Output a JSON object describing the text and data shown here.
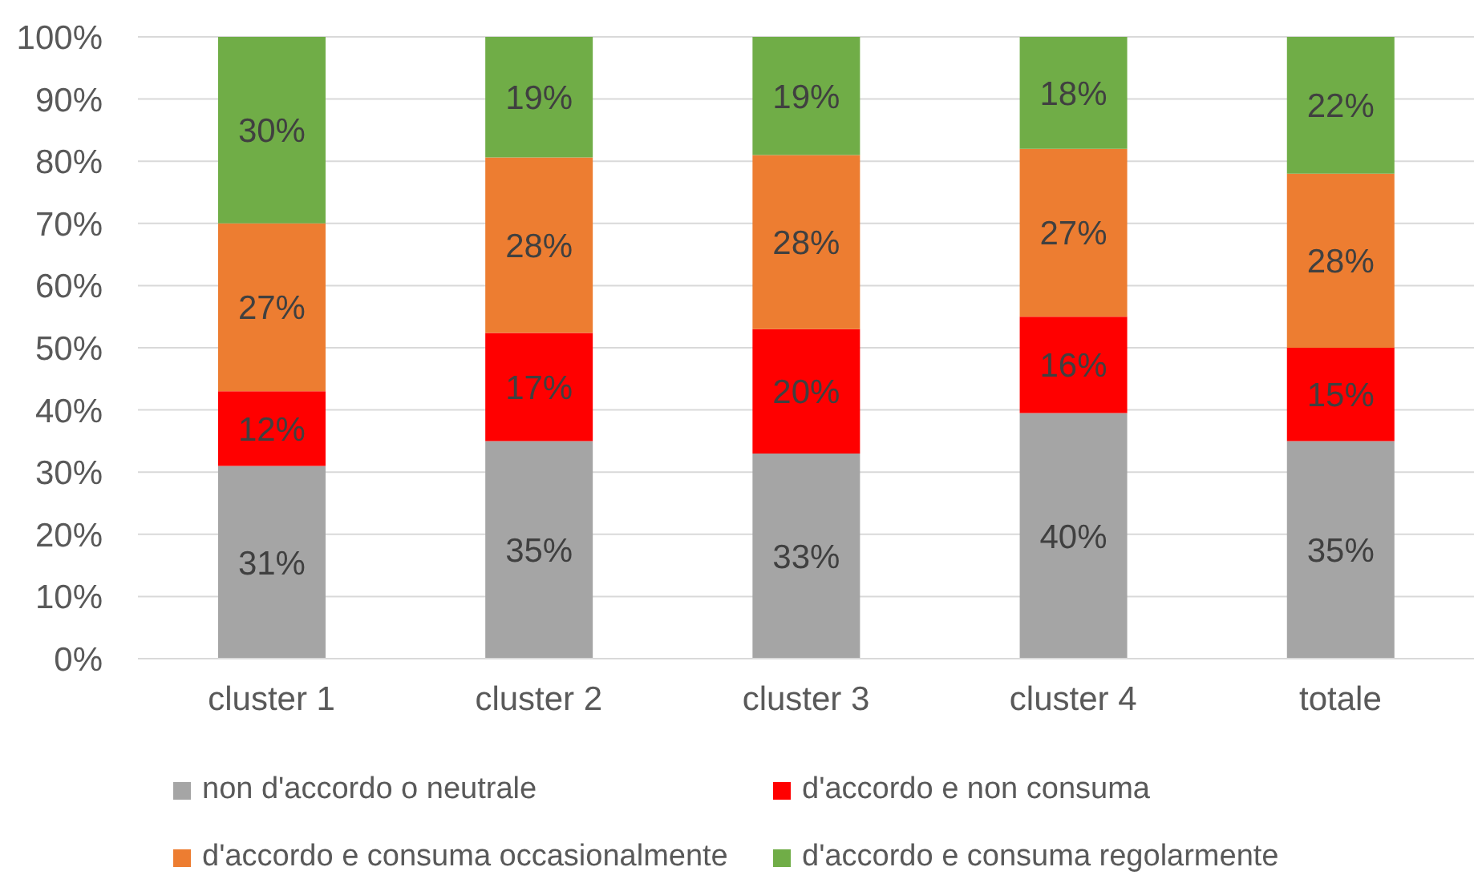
{
  "chart_data": {
    "type": "bar",
    "categories": [
      "cluster 1",
      "cluster 2",
      "cluster 3",
      "cluster 4",
      "totale"
    ],
    "stacked": true,
    "series": [
      {
        "name": "non d'accordo o neutrale",
        "color": "#a5a5a5",
        "values": [
          31,
          35,
          33,
          39.5,
          35
        ],
        "value_labels": [
          "31%",
          "35%",
          "33%",
          "40%",
          "35%"
        ]
      },
      {
        "name": "d'accordo e non consuma",
        "color": "#ff0000",
        "values": [
          12,
          17.4,
          20,
          15.5,
          15
        ],
        "value_labels": [
          "12%",
          "17%",
          "20%",
          "16%",
          "15%"
        ]
      },
      {
        "name": "d'accordo e consuma occasionalmente",
        "color": "#ed7d31",
        "values": [
          27,
          28.2,
          28,
          27,
          28
        ],
        "value_labels": [
          "27%",
          "28%",
          "28%",
          "27%",
          "28%"
        ]
      },
      {
        "name": "d'accordo e consuma regolarmente",
        "color": "#70ad47",
        "values": [
          30,
          19.4,
          19,
          18,
          22
        ],
        "value_labels": [
          "30%",
          "19%",
          "19%",
          "18%",
          "22%"
        ]
      }
    ],
    "ylim": [
      0,
      100
    ],
    "yticks": [
      {
        "value": 0,
        "label": "0%"
      },
      {
        "value": 10,
        "label": "10%"
      },
      {
        "value": 20,
        "label": "20%"
      },
      {
        "value": 30,
        "label": "30%"
      },
      {
        "value": 40,
        "label": "40%"
      },
      {
        "value": 50,
        "label": "50%"
      },
      {
        "value": 60,
        "label": "60%"
      },
      {
        "value": 70,
        "label": "70%"
      },
      {
        "value": 80,
        "label": "80%"
      },
      {
        "value": 90,
        "label": "90%"
      },
      {
        "value": 100,
        "label": "100%"
      }
    ],
    "grid": "y",
    "legend": "bottom"
  }
}
